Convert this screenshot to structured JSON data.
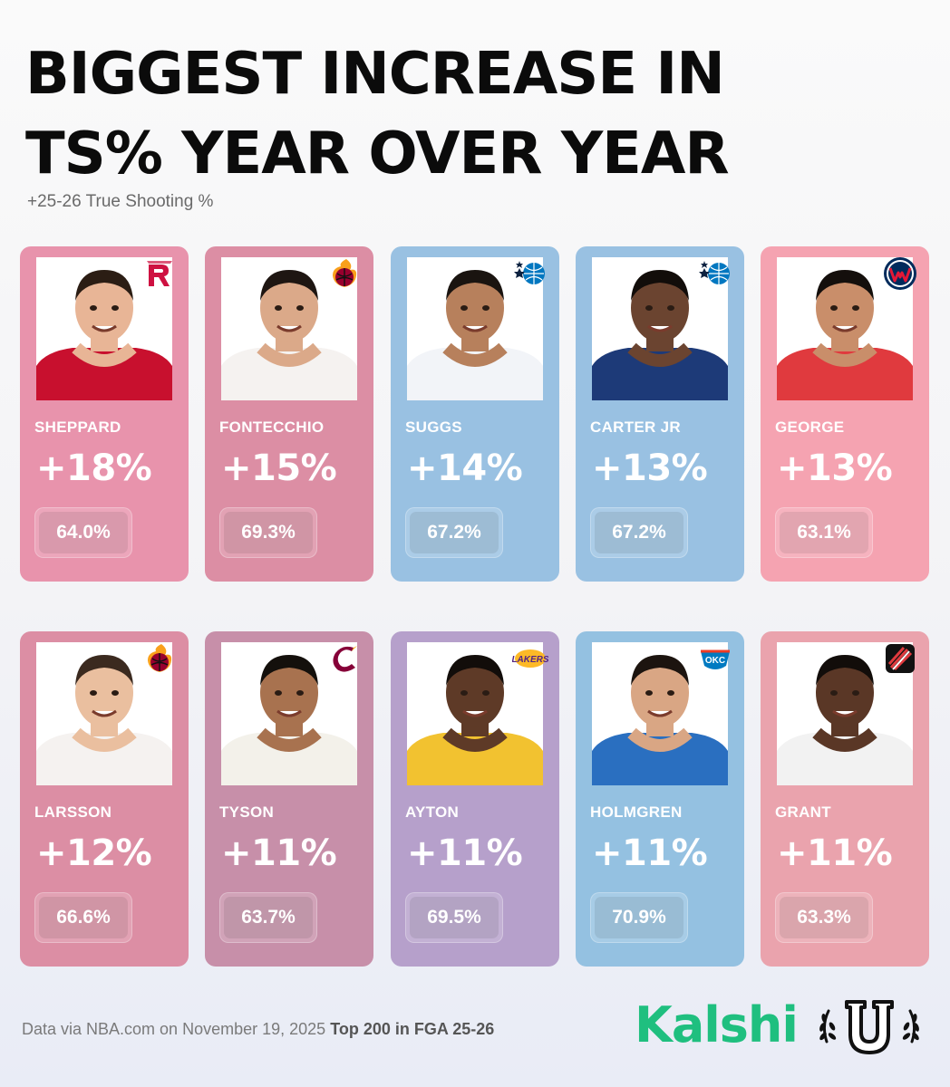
{
  "header": {
    "title_line1": "BIGGEST INCREASE IN",
    "title_line2": "TS% YEAR OVER YEAR",
    "subtitle": "+25-26 True Shooting %"
  },
  "players": [
    {
      "name": "SHEPPARD",
      "increase": "+18%",
      "ts": "64.0%",
      "team_icon": "rockets-logo-icon",
      "card_color": "#e893ac",
      "jersey_color": "#c8102e",
      "skin": "#e8b596",
      "hair": "#2b1d14"
    },
    {
      "name": "FONTECCHIO",
      "increase": "+15%",
      "ts": "69.3%",
      "team_icon": "heat-logo-icon",
      "card_color": "#dc8ea4",
      "jersey_color": "#f5f2f0",
      "skin": "#dba989",
      "hair": "#1e1612"
    },
    {
      "name": "SUGGS",
      "increase": "+14%",
      "ts": "67.2%",
      "team_icon": "magic-logo-icon",
      "card_color": "#99c1e2",
      "jersey_color": "#f2f4f8",
      "skin": "#b7805c",
      "hair": "#1a1410"
    },
    {
      "name": "CARTER JR",
      "increase": "+13%",
      "ts": "67.2%",
      "team_icon": "magic-logo-icon",
      "card_color": "#99c1e2",
      "jersey_color": "#1d3a78",
      "skin": "#6b4430",
      "hair": "#120d0a"
    },
    {
      "name": "GEORGE",
      "increase": "+13%",
      "ts": "63.1%",
      "team_icon": "wizards-logo-icon",
      "card_color": "#f5a3b1",
      "jersey_color": "#e03a3e",
      "skin": "#c98e6a",
      "hair": "#140f0c"
    },
    {
      "name": "LARSSON",
      "increase": "+12%",
      "ts": "66.6%",
      "team_icon": "heat-logo-icon",
      "card_color": "#dc8ea4",
      "jersey_color": "#f5f2f0",
      "skin": "#eabf9f",
      "hair": "#3b2a1f"
    },
    {
      "name": "TYSON",
      "increase": "+11%",
      "ts": "63.7%",
      "team_icon": "cavaliers-logo-icon",
      "card_color": "#c78fa9",
      "jersey_color": "#f3f1ea",
      "skin": "#a8724f",
      "hair": "#14100c"
    },
    {
      "name": "AYTON",
      "increase": "+11%",
      "ts": "69.5%",
      "team_icon": "lakers-logo-icon",
      "card_color": "#b6a0cb",
      "jersey_color": "#f2c230",
      "skin": "#5e3a27",
      "hair": "#120d0a"
    },
    {
      "name": "HOLMGREN",
      "increase": "+11%",
      "ts": "70.9%",
      "team_icon": "thunder-logo-icon",
      "card_color": "#94c1e1",
      "jersey_color": "#2a6fc0",
      "skin": "#d9a684",
      "hair": "#1c140f"
    },
    {
      "name": "GRANT",
      "increase": "+11%",
      "ts": "63.3%",
      "team_icon": "trail-blazers-logo-icon",
      "card_color": "#eaa3ad",
      "jersey_color": "#f2f2f2",
      "skin": "#5a3726",
      "hair": "#120d0a"
    }
  ],
  "footer": {
    "source": "Data via NBA.com on November 19, 2025",
    "qualifier": "Top 200 in FGA 25-26",
    "brand": "Kalshi",
    "partner_logo": "u-crest-logo-icon"
  }
}
